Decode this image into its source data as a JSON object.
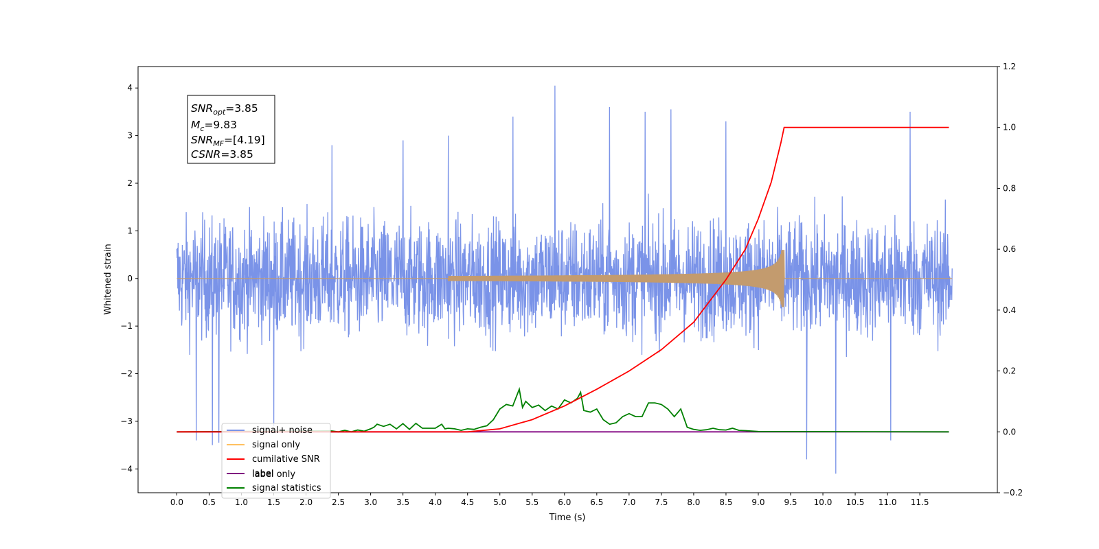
{
  "chart_data": {
    "type": "line",
    "xlabel": "Time (s)",
    "ylabel": "Whitened strain",
    "xlim": [
      -0.6,
      12.7
    ],
    "ylim": [
      -4.5,
      4.45
    ],
    "y2lim": [
      -0.2,
      1.2
    ],
    "x_ticks": [
      0.0,
      0.5,
      1.0,
      1.5,
      2.0,
      2.5,
      3.0,
      3.5,
      4.0,
      4.5,
      5.0,
      5.5,
      6.0,
      6.5,
      7.0,
      7.5,
      8.0,
      8.5,
      9.0,
      9.5,
      10.0,
      10.5,
      11.0,
      11.5
    ],
    "y_ticks": [
      -4,
      -3,
      -2,
      -1,
      0,
      1,
      2,
      3,
      4
    ],
    "y2_ticks": [
      -0.2,
      0.0,
      0.2,
      0.4,
      0.6,
      0.8,
      1.0,
      1.2
    ],
    "grid": false,
    "annotation_box": {
      "snr_opt": "=3.85",
      "mc": "=9.83",
      "snr_mf": "=[4.19]",
      "csnr": "=3.85"
    },
    "legend": {
      "placement": "lower-left",
      "entries": [
        {
          "label": "signal+ noise",
          "color": "#7a93e8"
        },
        {
          "label": "signal only",
          "color": "#ffc060"
        },
        {
          "label": "cumilative SNR",
          "color": "#ff0000"
        },
        {
          "label": "label",
          "color": "#800080"
        },
        {
          "label": "signal statistics",
          "color": "#008000"
        }
      ],
      "hidden_label": "label only"
    },
    "series": [
      {
        "name": "signal+ noise",
        "axis": "left",
        "color": "#7a93e8",
        "description_range": [
          0.0,
          12.0
        ],
        "envelope": {
          "typical_max": 2.2,
          "typical_min": -2.2
        },
        "peaks": [
          {
            "x": 0.3,
            "y": -3.4
          },
          {
            "x": 0.55,
            "y": -3.5
          },
          {
            "x": 0.65,
            "y": -3.45
          },
          {
            "x": 1.5,
            "y": -3.1
          },
          {
            "x": 2.4,
            "y": 2.8
          },
          {
            "x": 3.5,
            "y": 2.9
          },
          {
            "x": 4.2,
            "y": 3.0
          },
          {
            "x": 5.2,
            "y": 3.4
          },
          {
            "x": 5.85,
            "y": 4.05
          },
          {
            "x": 6.7,
            "y": 3.6
          },
          {
            "x": 7.25,
            "y": 3.5
          },
          {
            "x": 7.65,
            "y": 3.55
          },
          {
            "x": 8.5,
            "y": 3.3
          },
          {
            "x": 9.75,
            "y": -3.8
          },
          {
            "x": 10.2,
            "y": -4.1
          },
          {
            "x": 11.05,
            "y": -3.4
          },
          {
            "x": 11.35,
            "y": 3.5
          }
        ]
      },
      {
        "name": "signal only",
        "axis": "left",
        "color": "#c39b6e",
        "description": "chirp growing from x=5.0 to peak amplitude 0.6 at x=9.4, zero afterwards",
        "peak_x": 9.4,
        "peak_amplitude": 0.6
      },
      {
        "name": "cumilative SNR",
        "axis": "right",
        "color": "#ff0000",
        "x": [
          0.0,
          4.5,
          5.0,
          5.5,
          6.0,
          6.5,
          7.0,
          7.5,
          8.0,
          8.5,
          8.8,
          9.0,
          9.2,
          9.35,
          9.4,
          11.95
        ],
        "y": [
          0.0,
          0.0,
          0.01,
          0.04,
          0.085,
          0.14,
          0.2,
          0.27,
          0.36,
          0.5,
          0.6,
          0.7,
          0.82,
          0.95,
          1.0,
          1.0
        ]
      },
      {
        "name": "label",
        "axis": "right",
        "color": "#800080",
        "x": [
          0.0,
          11.95
        ],
        "y": [
          0.0,
          0.0
        ]
      },
      {
        "name": "signal statistics",
        "axis": "right",
        "color": "#008000",
        "x": [
          0.0,
          2.4,
          2.5,
          2.6,
          2.7,
          2.8,
          2.9,
          3.0,
          3.05,
          3.1,
          3.2,
          3.3,
          3.4,
          3.5,
          3.6,
          3.7,
          3.8,
          3.9,
          4.0,
          4.1,
          4.15,
          4.2,
          4.3,
          4.4,
          4.5,
          4.6,
          4.7,
          4.8,
          4.9,
          5.0,
          5.1,
          5.2,
          5.3,
          5.35,
          5.4,
          5.5,
          5.6,
          5.7,
          5.8,
          5.9,
          6.0,
          6.1,
          6.2,
          6.25,
          6.3,
          6.4,
          6.5,
          6.6,
          6.7,
          6.8,
          6.9,
          7.0,
          7.1,
          7.2,
          7.3,
          7.4,
          7.5,
          7.6,
          7.7,
          7.8,
          7.9,
          8.0,
          8.1,
          8.2,
          8.3,
          8.4,
          8.5,
          8.6,
          8.7,
          8.8,
          9.0,
          11.95
        ],
        "y": [
          0.0,
          0.003,
          0.0,
          0.005,
          0.0,
          0.006,
          0.002,
          0.01,
          0.015,
          0.025,
          0.018,
          0.025,
          0.01,
          0.027,
          0.008,
          0.028,
          0.012,
          0.012,
          0.012,
          0.025,
          0.01,
          0.012,
          0.01,
          0.005,
          0.01,
          0.008,
          0.015,
          0.02,
          0.04,
          0.075,
          0.09,
          0.085,
          0.14,
          0.08,
          0.1,
          0.08,
          0.088,
          0.07,
          0.085,
          0.075,
          0.105,
          0.095,
          0.11,
          0.13,
          0.07,
          0.065,
          0.075,
          0.04,
          0.025,
          0.03,
          0.05,
          0.06,
          0.05,
          0.05,
          0.095,
          0.095,
          0.09,
          0.075,
          0.05,
          0.075,
          0.015,
          0.008,
          0.005,
          0.007,
          0.012,
          0.007,
          0.006,
          0.012,
          0.005,
          0.004,
          0.001,
          0.0
        ]
      }
    ]
  }
}
